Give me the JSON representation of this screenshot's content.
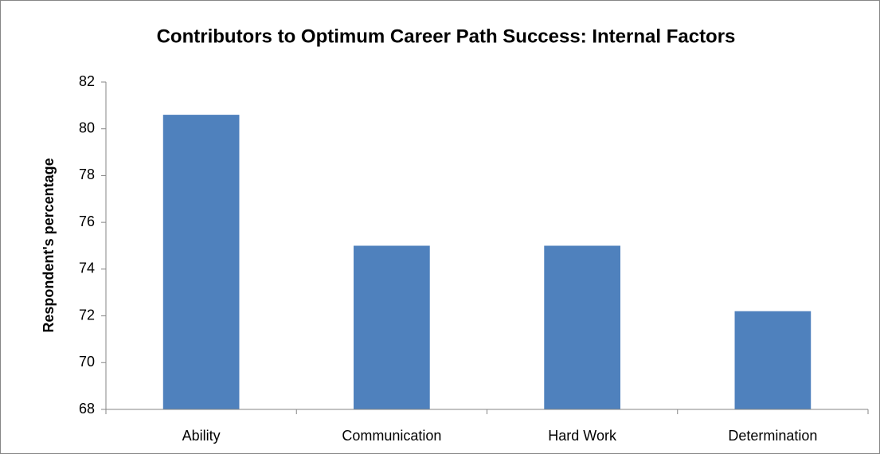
{
  "chart_data": {
    "type": "bar",
    "title": "Contributors to Optimum Career Path Success: Internal Factors",
    "y_label": "Respondent's percentage",
    "categories": [
      "Ability",
      "Communication",
      "Hard Work",
      "Determination"
    ],
    "values": [
      80.6,
      75,
      75,
      72.2
    ],
    "color": "#4f81bd",
    "ylim": [
      68,
      82
    ],
    "yticks": [
      68,
      70,
      72,
      74,
      76,
      78,
      80,
      82
    ],
    "grid": false
  }
}
